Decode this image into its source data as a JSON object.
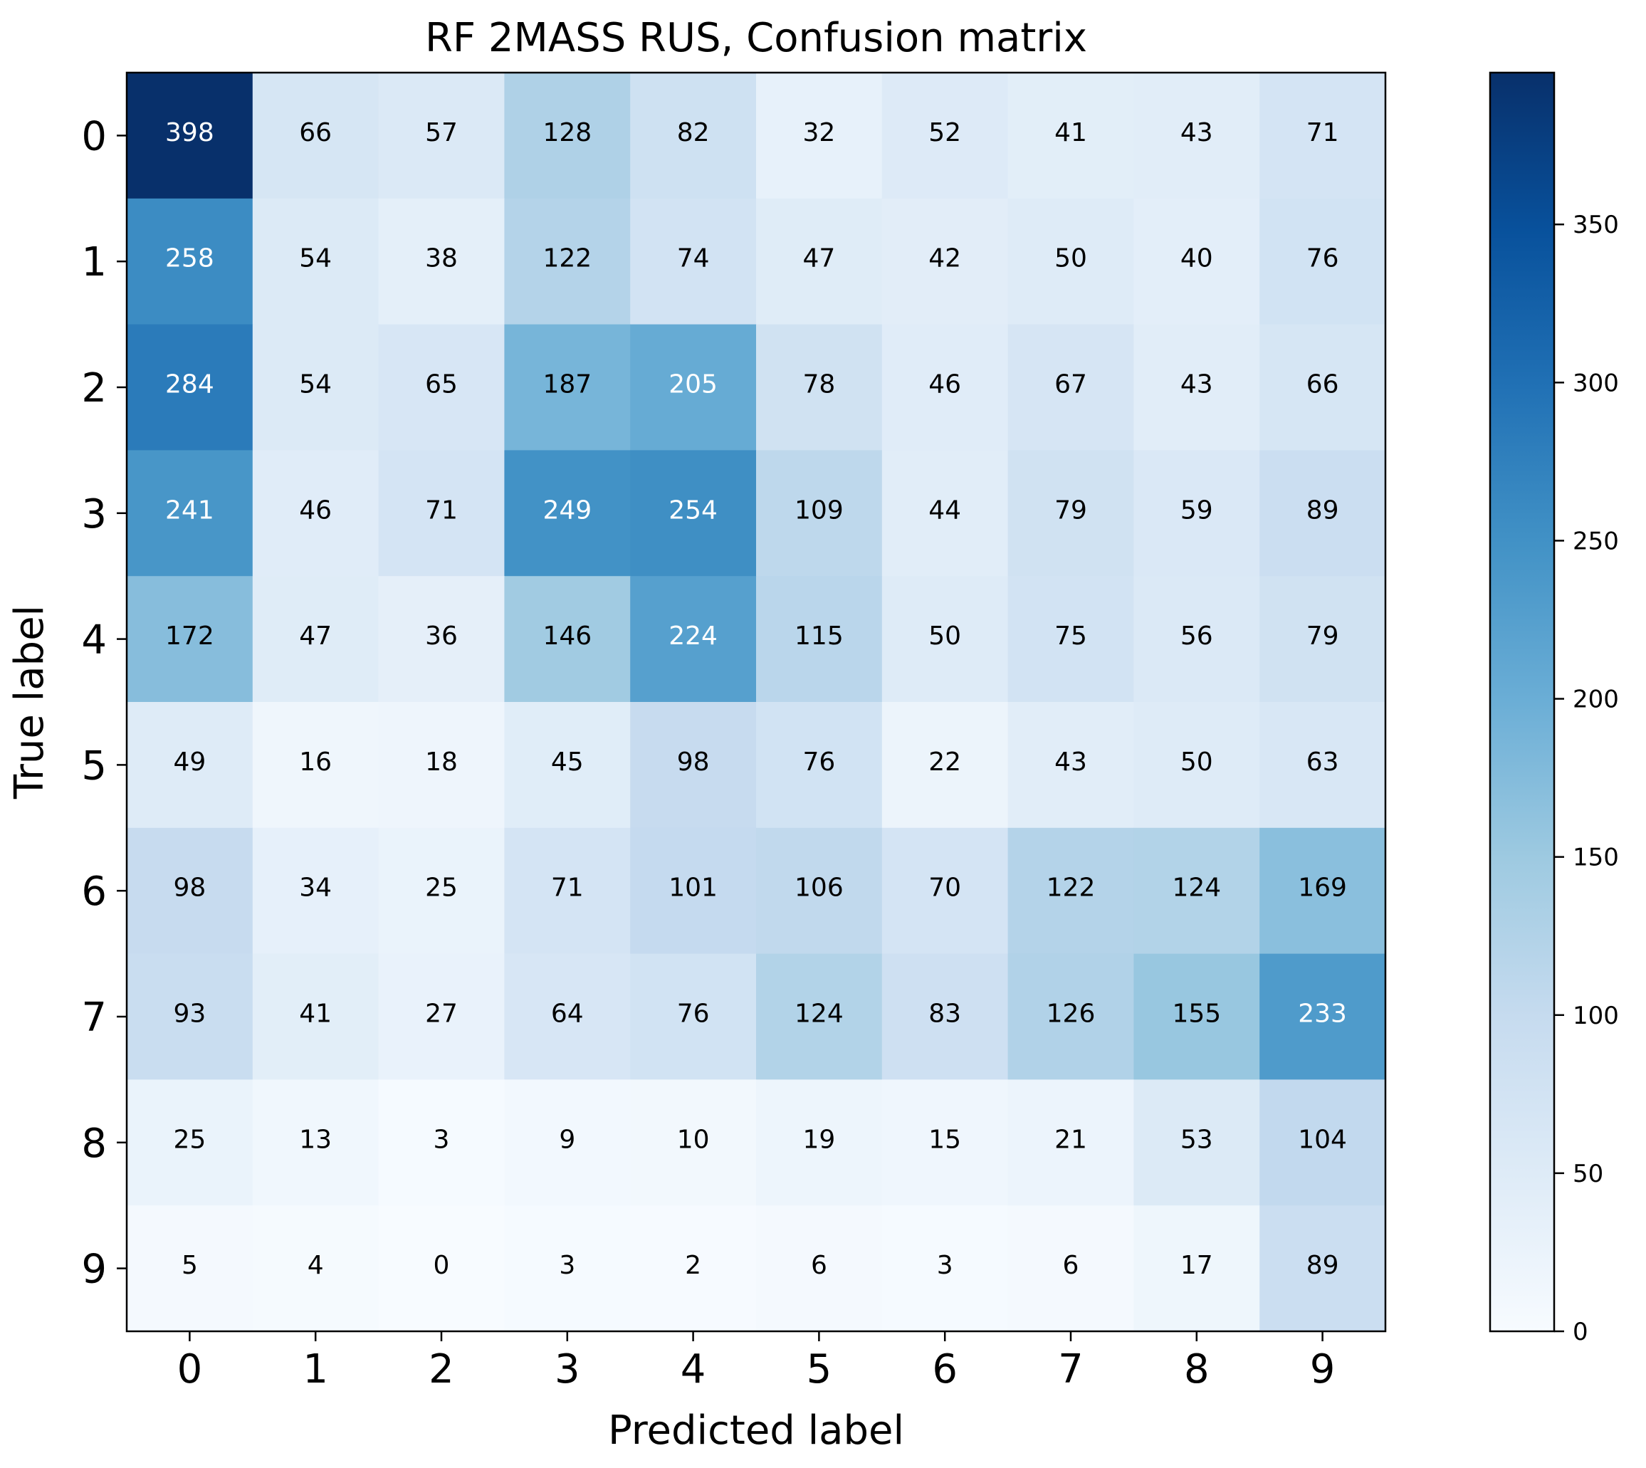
{
  "chart_data": {
    "type": "heatmap",
    "title": "RF 2MASS RUS, Confusion matrix",
    "xlabel": "Predicted label",
    "ylabel": "True label",
    "x_tick_labels": [
      "0",
      "1",
      "2",
      "3",
      "4",
      "5",
      "6",
      "7",
      "8",
      "9"
    ],
    "y_tick_labels": [
      "0",
      "1",
      "2",
      "3",
      "4",
      "5",
      "6",
      "7",
      "8",
      "9"
    ],
    "matrix": [
      [
        398,
        66,
        57,
        128,
        82,
        32,
        52,
        41,
        43,
        71
      ],
      [
        258,
        54,
        38,
        122,
        74,
        47,
        42,
        50,
        40,
        76
      ],
      [
        284,
        54,
        65,
        187,
        205,
        78,
        46,
        67,
        43,
        66
      ],
      [
        241,
        46,
        71,
        249,
        254,
        109,
        44,
        79,
        59,
        89
      ],
      [
        172,
        47,
        36,
        146,
        224,
        115,
        50,
        75,
        56,
        79
      ],
      [
        49,
        16,
        18,
        45,
        98,
        76,
        22,
        43,
        50,
        63
      ],
      [
        98,
        34,
        25,
        71,
        101,
        106,
        70,
        122,
        124,
        169
      ],
      [
        93,
        41,
        27,
        64,
        76,
        124,
        83,
        126,
        155,
        233
      ],
      [
        25,
        13,
        3,
        9,
        10,
        19,
        15,
        21,
        53,
        104
      ],
      [
        5,
        4,
        0,
        3,
        2,
        6,
        3,
        6,
        17,
        89
      ]
    ],
    "colormap": "Blues",
    "colorbar": {
      "min": 0,
      "max": 398,
      "ticks": [
        0,
        50,
        100,
        150,
        200,
        250,
        300,
        350
      ]
    },
    "text_color_threshold": 199,
    "colors": {
      "light_text": "#ffffff",
      "dark_text": "#000000",
      "blues": [
        "#f7fbff",
        "#deebf7",
        "#c6dbef",
        "#9ecae1",
        "#6baed6",
        "#4292c6",
        "#2171b5",
        "#08519c",
        "#08306b"
      ]
    },
    "grid": false
  }
}
